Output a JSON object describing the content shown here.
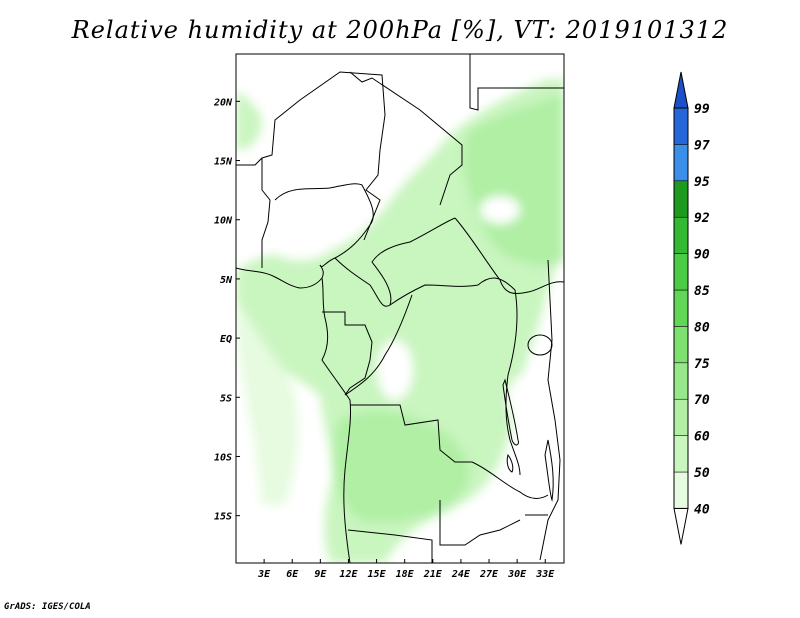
{
  "title": "Relative humidity at 200hPa [%], VT: 2019101312",
  "credit": "GrADS: IGES/COLA",
  "chart_data": {
    "type": "heatmap",
    "variable": "Relative humidity",
    "level": "200hPa",
    "units": "%",
    "valid_time": "2019101312",
    "lon_range": [
      0,
      35
    ],
    "lat_range": [
      -19,
      24
    ],
    "lon_ticks": [
      {
        "value": 3,
        "label": "3E"
      },
      {
        "value": 6,
        "label": "6E"
      },
      {
        "value": 9,
        "label": "9E"
      },
      {
        "value": 12,
        "label": "12E"
      },
      {
        "value": 15,
        "label": "15E"
      },
      {
        "value": 18,
        "label": "18E"
      },
      {
        "value": 21,
        "label": "21E"
      },
      {
        "value": 24,
        "label": "24E"
      },
      {
        "value": 27,
        "label": "27E"
      },
      {
        "value": 30,
        "label": "30E"
      },
      {
        "value": 33,
        "label": "33E"
      }
    ],
    "lat_ticks": [
      {
        "value": 20,
        "label": "20N"
      },
      {
        "value": 15,
        "label": "15N"
      },
      {
        "value": 10,
        "label": "10N"
      },
      {
        "value": 5,
        "label": "5N"
      },
      {
        "value": 0,
        "label": "EQ"
      },
      {
        "value": -5,
        "label": "5S"
      },
      {
        "value": -10,
        "label": "10S"
      },
      {
        "value": -15,
        "label": "15S"
      }
    ],
    "colorbar": {
      "levels": [
        40,
        50,
        60,
        70,
        75,
        80,
        85,
        90,
        92,
        95,
        97,
        99
      ],
      "colors": [
        "#ffffff",
        "#e6fbe0",
        "#c9f5bf",
        "#b0efa4",
        "#96e889",
        "#7ee06f",
        "#62d656",
        "#4ccb45",
        "#35b833",
        "#1e9a1e",
        "#3c8fe8",
        "#2566d8",
        "#1c4fc8"
      ]
    }
  }
}
